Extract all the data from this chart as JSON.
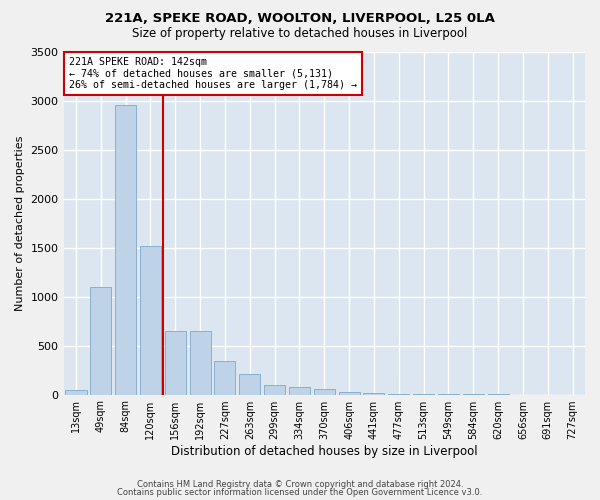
{
  "title1": "221A, SPEKE ROAD, WOOLTON, LIVERPOOL, L25 0LA",
  "title2": "Size of property relative to detached houses in Liverpool",
  "xlabel": "Distribution of detached houses by size in Liverpool",
  "ylabel": "Number of detached properties",
  "categories": [
    "13sqm",
    "49sqm",
    "84sqm",
    "120sqm",
    "156sqm",
    "192sqm",
    "227sqm",
    "263sqm",
    "299sqm",
    "334sqm",
    "370sqm",
    "406sqm",
    "441sqm",
    "477sqm",
    "513sqm",
    "549sqm",
    "584sqm",
    "620sqm",
    "656sqm",
    "691sqm",
    "727sqm"
  ],
  "values": [
    50,
    1100,
    2950,
    1520,
    650,
    650,
    340,
    210,
    100,
    80,
    55,
    30,
    15,
    10,
    5,
    2,
    1,
    2,
    0,
    0,
    0
  ],
  "bar_color": "#bed3e8",
  "bar_edge_color": "#8ab0d0",
  "vline_x": 3.5,
  "vline_color": "#cc0000",
  "annotation_box_text": "221A SPEKE ROAD: 142sqm\n← 74% of detached houses are smaller (5,131)\n26% of semi-detached houses are larger (1,784) →",
  "annotation_box_color": "#cc0000",
  "ylim": [
    0,
    3500
  ],
  "yticks": [
    0,
    500,
    1000,
    1500,
    2000,
    2500,
    3000,
    3500
  ],
  "background_color": "#dce6f0",
  "fig_background_color": "#f0f0f0",
  "grid_color": "#ffffff",
  "footer_line1": "Contains HM Land Registry data © Crown copyright and database right 2024.",
  "footer_line2": "Contains public sector information licensed under the Open Government Licence v3.0."
}
